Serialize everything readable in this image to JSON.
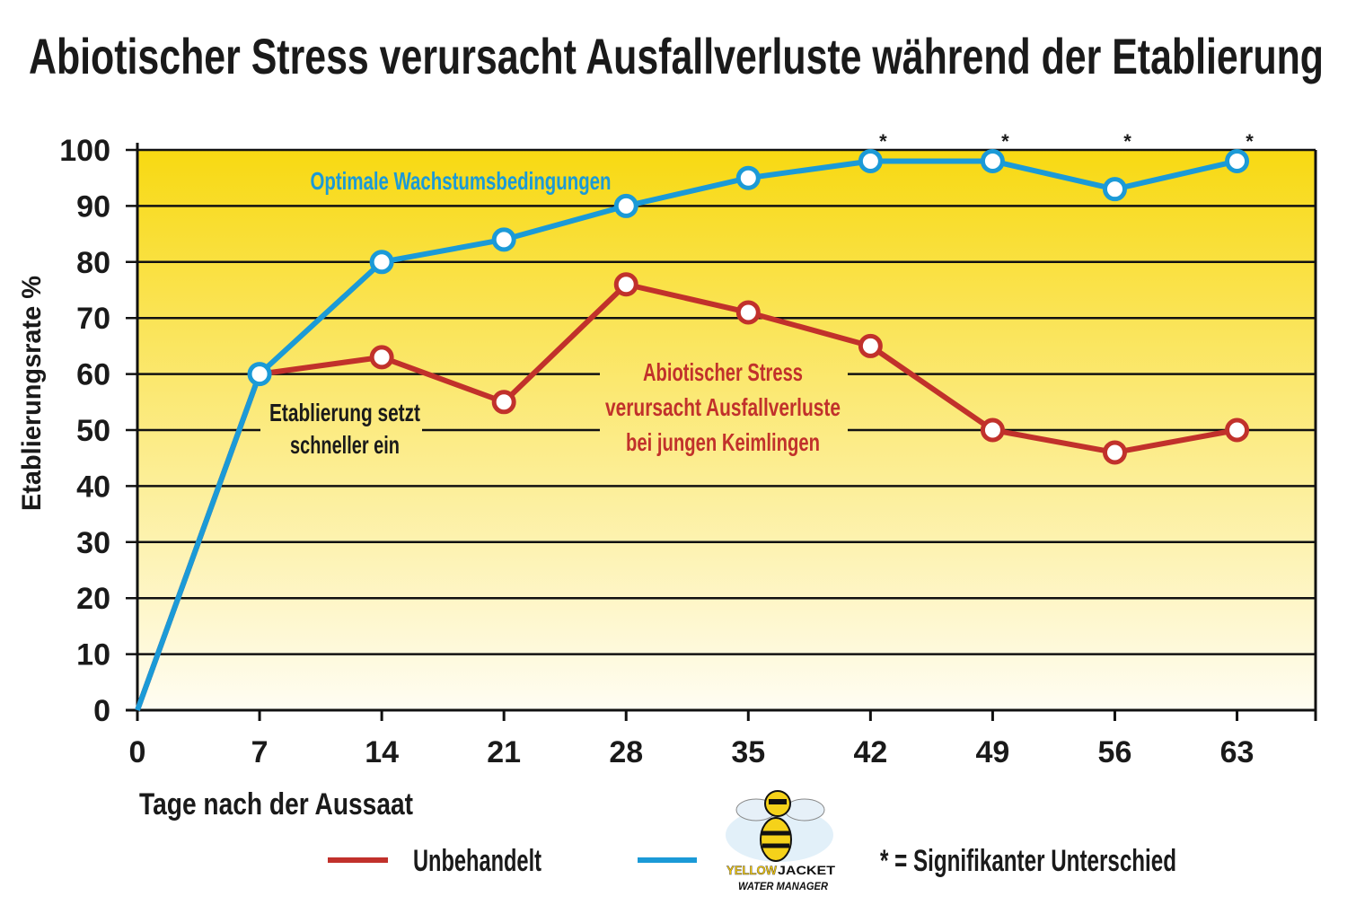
{
  "chart_data": {
    "type": "line",
    "title": "Abiotischer Stress verursacht Ausfallverluste während der Etablierung",
    "xlabel": "Tage nach der Aussaat",
    "ylabel": "Etablierungsrate %",
    "x": [
      0,
      7,
      14,
      21,
      28,
      35,
      42,
      49,
      56,
      63
    ],
    "xticks": [
      "0",
      "7",
      "14",
      "21",
      "28",
      "35",
      "42",
      "49",
      "56",
      "63"
    ],
    "yticks": [
      "0",
      "10",
      "20",
      "30",
      "40",
      "50",
      "60",
      "70",
      "80",
      "90",
      "100"
    ],
    "xlim": [
      0,
      67.5
    ],
    "ylim": [
      0,
      100
    ],
    "grid": true,
    "legend_position": "bottom",
    "series": [
      {
        "name": "Unbehandelt",
        "color": "#c1312b",
        "values": [
          0,
          60,
          63,
          55,
          76,
          71,
          65,
          50,
          46,
          50
        ]
      },
      {
        "name": "YELLOWJACKET WATER MANAGER",
        "color": "#1b9ad7",
        "values": [
          0,
          60,
          80,
          84,
          90,
          95,
          98,
          98,
          93,
          98
        ]
      }
    ],
    "significant_x": [
      42,
      49,
      56,
      63
    ],
    "significance_mark": "*",
    "annotations": {
      "blue": "Optimale Wachstumsbedingungen",
      "black": [
        "Etablierung setzt",
        "schneller ein"
      ],
      "red": [
        "Abiotischer Stress",
        "verursacht Ausfallverluste",
        "bei jungen Keimlingen"
      ]
    },
    "significance_legend": "* = Signifikanter Unterschied",
    "background_gradient": [
      "#f8d912",
      "#fffdf3"
    ]
  },
  "logo": {
    "text_yellow": "YELLOW",
    "text_black": "JACKET",
    "subtitle": "WATER MANAGER"
  }
}
